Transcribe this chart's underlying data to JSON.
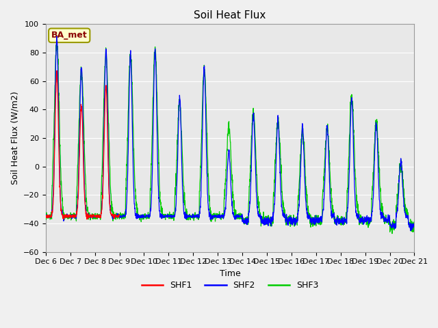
{
  "title": "Soil Heat Flux",
  "ylabel": "Soil Heat Flux (W/m2)",
  "xlabel": "Time",
  "ylim": [
    -60,
    100
  ],
  "fig_bg_color": "#f0f0f0",
  "plot_bg_color": "#e8e8e8",
  "legend_label": "BA_met",
  "series_labels": [
    "SHF1",
    "SHF2",
    "SHF3"
  ],
  "series_colors": [
    "#ff0000",
    "#0000ff",
    "#00cc00"
  ],
  "xtick_labels": [
    "Dec 6",
    "Dec 7",
    "Dec 8",
    "Dec 9",
    "Dec 10",
    "Dec 11",
    "Dec 12",
    "Dec 13",
    "Dec 14",
    "Dec 15",
    "Dec 16",
    "Dec 17",
    "Dec 18",
    "Dec 19",
    "Dec 20",
    "Dec 21"
  ],
  "n_days": 15,
  "pts_per_day": 144,
  "night_base": -35,
  "figsize": [
    6.4,
    4.8
  ],
  "dpi": 100
}
